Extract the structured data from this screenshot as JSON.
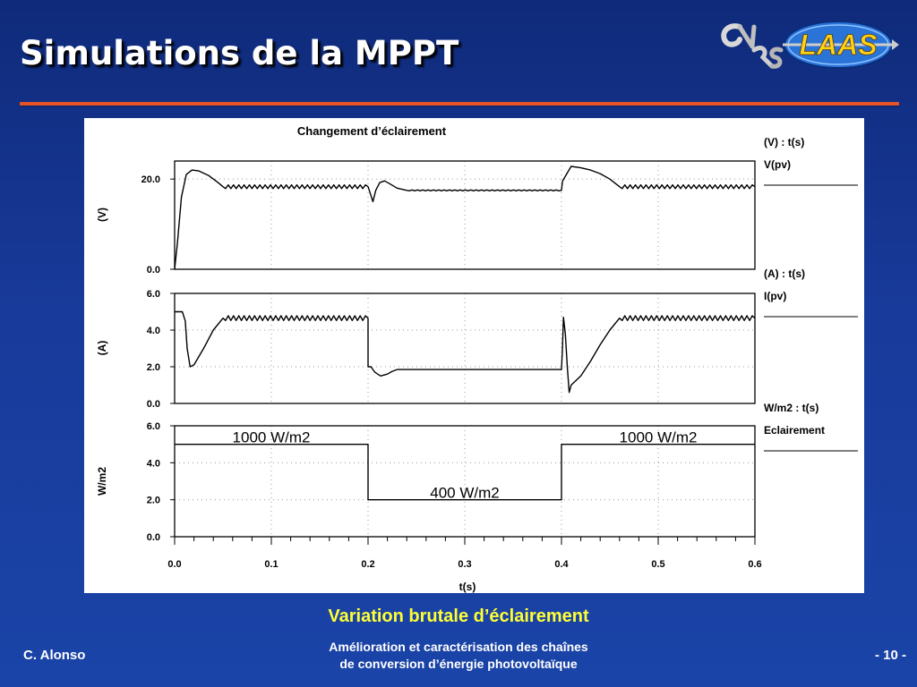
{
  "slide": {
    "title": "Simulations de la MPPT",
    "caption": "Variation brutale d’éclairement",
    "author": "C. Alonso",
    "subtitle_line1": "Amélioration et caractérisation des chaînes",
    "subtitle_line2": "de conversion d’énergie photovoltaïque",
    "page": "- 10 -"
  },
  "logo": {
    "left_text": "CNRS",
    "right_text": "LAAS"
  },
  "colors": {
    "background": "#183a9a",
    "accent_rule": "#e8542a",
    "caption": "#ffff33",
    "trace": "#000000"
  },
  "chart_data": [
    {
      "type": "line",
      "title": "Changement d’éclairement",
      "ylabel": "(V)",
      "yticks": [
        0.0,
        20.0
      ],
      "ytick_labels": [
        "0.0",
        "20.0"
      ],
      "ylim": [
        0,
        24
      ],
      "xlim": [
        0,
        0.6
      ],
      "grid": true,
      "legend": {
        "placement": "right",
        "unit_line": "(V)  :  t(s)",
        "series_line": "V(pv)"
      },
      "series": [
        {
          "name": "V(pv)",
          "ripple": [
            [
              0.05,
              0.2,
              0.4
            ],
            [
              0.24,
              0.4,
              0.1
            ],
            [
              0.46,
              0.6,
              0.4
            ]
          ],
          "points": [
            [
              0.0,
              0.0
            ],
            [
              0.003,
              6.0
            ],
            [
              0.007,
              16.0
            ],
            [
              0.012,
              21.0
            ],
            [
              0.018,
              22.0
            ],
            [
              0.025,
              21.8
            ],
            [
              0.035,
              20.8
            ],
            [
              0.045,
              19.2
            ],
            [
              0.05,
              18.3
            ],
            [
              0.2,
              18.3
            ],
            [
              0.202,
              17.0
            ],
            [
              0.205,
              15.0
            ],
            [
              0.208,
              17.5
            ],
            [
              0.212,
              19.2
            ],
            [
              0.217,
              19.6
            ],
            [
              0.222,
              19.0
            ],
            [
              0.23,
              18.0
            ],
            [
              0.24,
              17.5
            ],
            [
              0.4,
              17.5
            ],
            [
              0.401,
              19.5
            ],
            [
              0.405,
              21.0
            ],
            [
              0.41,
              22.8
            ],
            [
              0.42,
              22.5
            ],
            [
              0.43,
              22.0
            ],
            [
              0.44,
              21.2
            ],
            [
              0.45,
              20.0
            ],
            [
              0.46,
              18.3
            ],
            [
              0.6,
              18.3
            ]
          ]
        }
      ]
    },
    {
      "type": "line",
      "ylabel": "(A)",
      "yticks": [
        0.0,
        2.0,
        4.0,
        6.0
      ],
      "ytick_labels": [
        "0.0",
        "2.0",
        "4.0",
        "6.0"
      ],
      "ylim": [
        0,
        6
      ],
      "xlim": [
        0,
        0.6
      ],
      "grid": true,
      "legend": {
        "placement": "right",
        "unit_line": "(A)  :  t(s)",
        "series_line": "I(pv)"
      },
      "series": [
        {
          "name": "I(pv)",
          "ripple": [
            [
              0.05,
              0.2,
              0.13
            ],
            [
              0.46,
              0.6,
              0.13
            ]
          ],
          "points": [
            [
              0.0,
              5.0
            ],
            [
              0.008,
              5.0
            ],
            [
              0.011,
              4.5
            ],
            [
              0.013,
              3.0
            ],
            [
              0.016,
              2.0
            ],
            [
              0.02,
              2.1
            ],
            [
              0.03,
              3.0
            ],
            [
              0.04,
              4.0
            ],
            [
              0.05,
              4.65
            ],
            [
              0.2,
              4.65
            ],
            [
              0.2,
              2.0
            ],
            [
              0.203,
              2.0
            ],
            [
              0.207,
              1.7
            ],
            [
              0.213,
              1.5
            ],
            [
              0.22,
              1.6
            ],
            [
              0.225,
              1.75
            ],
            [
              0.23,
              1.85
            ],
            [
              0.4,
              1.85
            ],
            [
              0.401,
              3.0
            ],
            [
              0.402,
              4.7
            ],
            [
              0.404,
              3.8
            ],
            [
              0.406,
              2.0
            ],
            [
              0.408,
              0.6
            ],
            [
              0.41,
              1.0
            ],
            [
              0.42,
              1.5
            ],
            [
              0.43,
              2.3
            ],
            [
              0.44,
              3.2
            ],
            [
              0.45,
              4.0
            ],
            [
              0.46,
              4.65
            ],
            [
              0.6,
              4.65
            ]
          ]
        }
      ]
    },
    {
      "type": "line",
      "ylabel": "W/m2",
      "xlabel": "t(s)",
      "yticks": [
        0.0,
        2.0,
        4.0,
        6.0
      ],
      "ytick_labels": [
        "0.0",
        "2.0",
        "4.0",
        "6.0"
      ],
      "ylim": [
        0,
        6
      ],
      "xlim": [
        0,
        0.6
      ],
      "xticks": [
        0.0,
        0.1,
        0.2,
        0.3,
        0.4,
        0.5,
        0.6
      ],
      "xtick_labels": [
        "0.0",
        "0.1",
        "0.2",
        "0.3",
        "0.4",
        "0.5",
        "0.6"
      ],
      "grid": true,
      "legend": {
        "placement": "right",
        "unit_line": "W/m2  :  t(s)",
        "series_line": "Eclairement"
      },
      "annotations": [
        {
          "text": "1000 W/m2",
          "x": 0.1,
          "y": 5.5
        },
        {
          "text": "400 W/m2",
          "x": 0.3,
          "y": 2.5
        },
        {
          "text": "1000 W/m2",
          "x": 0.5,
          "y": 5.5
        }
      ],
      "series": [
        {
          "name": "Eclairement",
          "points": [
            [
              0.0,
              5.0
            ],
            [
              0.2,
              5.0
            ],
            [
              0.2,
              2.0
            ],
            [
              0.4,
              2.0
            ],
            [
              0.4,
              5.0
            ],
            [
              0.6,
              5.0
            ]
          ]
        }
      ]
    }
  ]
}
